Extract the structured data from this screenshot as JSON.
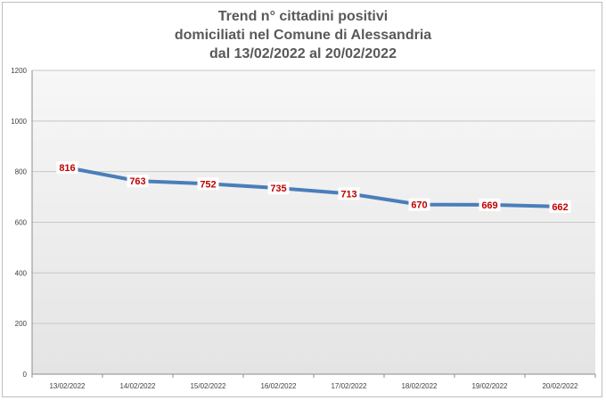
{
  "chart_data": {
    "type": "line",
    "title": [
      "Trend n° cittadini positivi",
      "domiciliati nel Comune di Alessandria",
      "dal 13/02/2022 al 20/02/2022"
    ],
    "categories": [
      "13/02/2022",
      "14/02/2022",
      "15/02/2022",
      "16/02/2022",
      "17/02/2022",
      "18/02/2022",
      "19/02/2022",
      "20/02/2022"
    ],
    "series": [
      {
        "values": [
          816,
          763,
          752,
          735,
          713,
          670,
          669,
          662
        ],
        "color": "#4a7ebb"
      }
    ],
    "ylim": [
      0,
      1200
    ],
    "yticks": [
      0,
      200,
      400,
      600,
      800,
      1000,
      1200
    ],
    "xlabel": "",
    "ylabel": "",
    "grid": true,
    "legend": "none",
    "plot_background": "#e9e9e9",
    "label_color": "#c00000"
  }
}
